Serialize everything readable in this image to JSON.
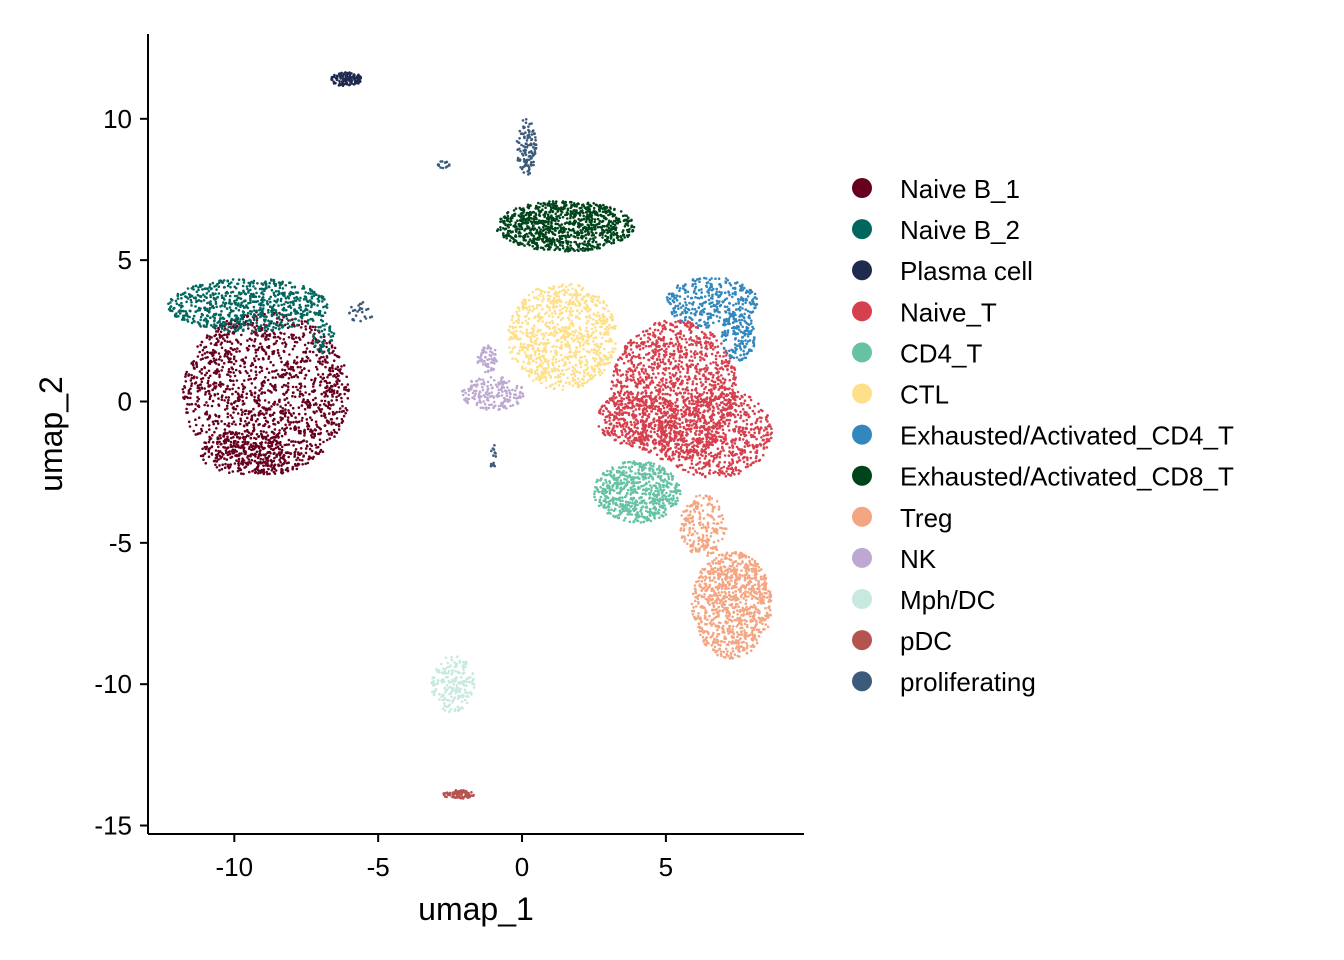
{
  "chart_data": {
    "type": "scatter",
    "title": "",
    "xlabel": "umap_1",
    "ylabel": "umap_2",
    "xlim": [
      -13.0,
      9.8
    ],
    "ylim": [
      -15.3,
      13.0
    ],
    "x_ticks": [
      -10,
      -5,
      0,
      5
    ],
    "y_ticks": [
      -15,
      -10,
      -5,
      0,
      5,
      10
    ],
    "grid": false,
    "legend_position": "right",
    "series": [
      {
        "name": "Naive B_1",
        "color": "#67001F",
        "clusters": [
          {
            "cx": -8.9,
            "cy": 0.3,
            "rx": 2.9,
            "ry": 2.9,
            "n": 1500
          },
          {
            "cx": -9.6,
            "cy": -1.8,
            "rx": 1.6,
            "ry": 0.8,
            "n": 250
          }
        ]
      },
      {
        "name": "Naive B_2",
        "color": "#01665E",
        "clusters": [
          {
            "cx": -9.5,
            "cy": 3.4,
            "rx": 2.8,
            "ry": 0.95,
            "n": 700
          },
          {
            "cx": -6.9,
            "cy": 2.3,
            "rx": 0.4,
            "ry": 0.6,
            "n": 50
          }
        ]
      },
      {
        "name": "Plasma cell",
        "color": "#1F2A4F",
        "clusters": [
          {
            "cx": -6.1,
            "cy": 11.4,
            "rx": 0.55,
            "ry": 0.25,
            "n": 130
          }
        ]
      },
      {
        "name": "Naive_T",
        "color": "#D6404E",
        "clusters": [
          {
            "cx": 5.3,
            "cy": 0.4,
            "rx": 2.2,
            "ry": 2.5,
            "n": 1300
          },
          {
            "cx": 6.7,
            "cy": -1.1,
            "rx": 2.0,
            "ry": 1.6,
            "n": 700
          },
          {
            "cx": 4.0,
            "cy": -0.6,
            "rx": 1.4,
            "ry": 1.0,
            "n": 300
          }
        ]
      },
      {
        "name": "CD4_T",
        "color": "#66C2A5",
        "clusters": [
          {
            "cx": 4.0,
            "cy": -3.2,
            "rx": 1.5,
            "ry": 1.1,
            "n": 650
          }
        ]
      },
      {
        "name": "CTL",
        "color": "#FEE08B",
        "clusters": [
          {
            "cx": 1.4,
            "cy": 2.3,
            "rx": 1.9,
            "ry": 1.9,
            "n": 900
          }
        ]
      },
      {
        "name": "Exhausted/Activated_CD4_T",
        "color": "#3288BD",
        "clusters": [
          {
            "cx": 6.6,
            "cy": 3.5,
            "rx": 1.6,
            "ry": 0.9,
            "n": 350
          },
          {
            "cx": 7.5,
            "cy": 2.3,
            "rx": 0.6,
            "ry": 0.9,
            "n": 150
          }
        ]
      },
      {
        "name": "Exhausted/Activated_CD8_T",
        "color": "#00441B",
        "clusters": [
          {
            "cx": 1.5,
            "cy": 6.2,
            "rx": 2.4,
            "ry": 0.9,
            "n": 1000
          }
        ]
      },
      {
        "name": "Treg",
        "color": "#F4A582",
        "clusters": [
          {
            "cx": 7.3,
            "cy": -7.2,
            "rx": 1.4,
            "ry": 1.9,
            "n": 900
          },
          {
            "cx": 6.3,
            "cy": -4.4,
            "rx": 0.8,
            "ry": 1.1,
            "n": 200
          }
        ]
      },
      {
        "name": "NK",
        "color": "#BCA8D0",
        "clusters": [
          {
            "cx": -1.0,
            "cy": 0.3,
            "rx": 1.1,
            "ry": 0.6,
            "n": 180
          },
          {
            "cx": -1.2,
            "cy": 1.5,
            "rx": 0.35,
            "ry": 0.5,
            "n": 60
          }
        ]
      },
      {
        "name": "Mph/DC",
        "color": "#C7E9E0",
        "clusters": [
          {
            "cx": -2.4,
            "cy": -10.0,
            "rx": 0.75,
            "ry": 1.0,
            "n": 200
          }
        ]
      },
      {
        "name": "pDC",
        "color": "#B5544F",
        "clusters": [
          {
            "cx": -2.2,
            "cy": -13.9,
            "rx": 0.55,
            "ry": 0.15,
            "n": 80
          }
        ]
      },
      {
        "name": "proliferating",
        "color": "#3C5A7A",
        "clusters": [
          {
            "cx": 0.15,
            "cy": 9.0,
            "rx": 0.35,
            "ry": 1.0,
            "n": 120
          },
          {
            "cx": -5.6,
            "cy": 3.2,
            "rx": 0.45,
            "ry": 0.4,
            "n": 25
          },
          {
            "cx": -2.7,
            "cy": 8.4,
            "rx": 0.25,
            "ry": 0.15,
            "n": 15
          },
          {
            "cx": -1.0,
            "cy": -2.0,
            "rx": 0.1,
            "ry": 0.5,
            "n": 15
          }
        ]
      }
    ]
  }
}
